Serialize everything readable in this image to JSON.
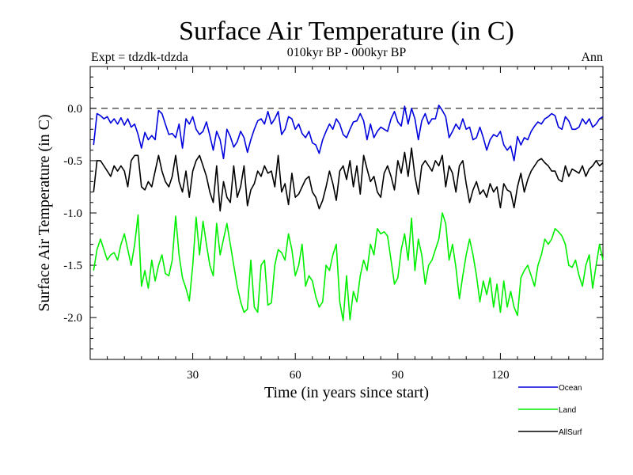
{
  "chart_data": {
    "type": "line",
    "title": "Surface Air Temperature (in C)",
    "experiment": "Expt = tdzdk-tdzda",
    "period": "010kyr BP - 000kyr BP",
    "season": "Ann",
    "xlabel": "Time (in years since start)",
    "ylabel": "Surface Air Temperature (in C)",
    "xlim": [
      0,
      150
    ],
    "ylim": [
      -2.4,
      0.4
    ],
    "x_ticks": [
      30,
      60,
      90,
      120
    ],
    "x_tick_labels": [
      "30",
      "60",
      "90",
      "120"
    ],
    "y_ticks": [
      0.0,
      -0.5,
      -1.0,
      -1.5,
      -2.0
    ],
    "y_tick_labels": [
      "0.0",
      "-0.5",
      "-1.0",
      "-1.5",
      "-2.0"
    ],
    "reference_line": 0.0,
    "x": [
      1,
      2,
      3,
      4,
      5,
      6,
      7,
      8,
      9,
      10,
      11,
      12,
      13,
      14,
      15,
      16,
      17,
      18,
      19,
      20,
      21,
      22,
      23,
      24,
      25,
      26,
      27,
      28,
      29,
      30,
      31,
      32,
      33,
      34,
      35,
      36,
      37,
      38,
      39,
      40,
      41,
      42,
      43,
      44,
      45,
      46,
      47,
      48,
      49,
      50,
      51,
      52,
      53,
      54,
      55,
      56,
      57,
      58,
      59,
      60,
      61,
      62,
      63,
      64,
      65,
      66,
      67,
      68,
      69,
      70,
      71,
      72,
      73,
      74,
      75,
      76,
      77,
      78,
      79,
      80,
      81,
      82,
      83,
      84,
      85,
      86,
      87,
      88,
      89,
      90,
      91,
      92,
      93,
      94,
      95,
      96,
      97,
      98,
      99,
      100,
      101,
      102,
      103,
      104,
      105,
      106,
      107,
      108,
      109,
      110,
      111,
      112,
      113,
      114,
      115,
      116,
      117,
      118,
      119,
      120,
      121,
      122,
      123,
      124,
      125,
      126,
      127,
      128,
      129,
      130,
      131,
      132,
      133,
      134,
      135,
      136,
      137,
      138,
      139,
      140,
      141,
      142,
      143,
      144,
      145,
      146,
      147,
      148,
      149,
      150
    ],
    "series": [
      {
        "name": "Ocean",
        "color": "#0000dd",
        "values": [
          -0.35,
          -0.05,
          -0.07,
          -0.1,
          -0.08,
          -0.14,
          -0.1,
          -0.15,
          -0.09,
          -0.16,
          -0.1,
          -0.18,
          -0.15,
          -0.25,
          -0.38,
          -0.23,
          -0.3,
          -0.26,
          -0.3,
          -0.02,
          -0.05,
          -0.15,
          -0.25,
          -0.24,
          -0.28,
          -0.15,
          -0.38,
          -0.1,
          -0.15,
          -0.08,
          -0.2,
          -0.25,
          -0.22,
          -0.13,
          -0.26,
          -0.4,
          -0.22,
          -0.3,
          -0.48,
          -0.2,
          -0.27,
          -0.37,
          -0.32,
          -0.22,
          -0.28,
          -0.42,
          -0.3,
          -0.2,
          -0.12,
          -0.1,
          -0.15,
          -0.03,
          -0.15,
          -0.1,
          -0.03,
          -0.25,
          -0.2,
          -0.08,
          -0.1,
          -0.2,
          -0.15,
          -0.24,
          -0.28,
          -0.22,
          -0.33,
          -0.35,
          -0.43,
          -0.3,
          -0.22,
          -0.15,
          -0.2,
          -0.1,
          -0.15,
          -0.25,
          -0.28,
          -0.2,
          -0.13,
          -0.12,
          -0.05,
          -0.12,
          -0.3,
          -0.15,
          -0.28,
          -0.22,
          -0.18,
          -0.2,
          -0.22,
          -0.1,
          -0.03,
          -0.13,
          -0.17,
          0.02,
          -0.15,
          0.0,
          -0.1,
          -0.3,
          -0.12,
          -0.05,
          -0.15,
          -0.1,
          -0.1,
          0.03,
          -0.02,
          -0.08,
          -0.28,
          -0.22,
          -0.15,
          -0.2,
          -0.1,
          -0.2,
          -0.18,
          -0.3,
          -0.28,
          -0.18,
          -0.28,
          -0.4,
          -0.3,
          -0.25,
          -0.27,
          -0.22,
          -0.35,
          -0.4,
          -0.36,
          -0.5,
          -0.27,
          -0.35,
          -0.28,
          -0.3,
          -0.22,
          -0.17,
          -0.13,
          -0.15,
          -0.1,
          -0.08,
          -0.05,
          -0.07,
          -0.18,
          -0.2,
          -0.08,
          -0.12,
          -0.2,
          -0.2,
          -0.18,
          -0.1,
          -0.15,
          -0.1,
          -0.18,
          -0.15,
          -0.1,
          -0.08
        ]
      },
      {
        "name": "Land",
        "color": "#00ee00",
        "values": [
          -1.55,
          -1.35,
          -1.25,
          -1.35,
          -1.45,
          -1.4,
          -1.38,
          -1.45,
          -1.3,
          -1.2,
          -1.35,
          -1.5,
          -1.3,
          -1.02,
          -1.7,
          -1.55,
          -1.72,
          -1.45,
          -1.65,
          -1.5,
          -1.4,
          -1.58,
          -1.6,
          -1.45,
          -1.03,
          -1.4,
          -1.62,
          -1.72,
          -1.84,
          -1.5,
          -1.04,
          -1.4,
          -1.08,
          -1.3,
          -1.5,
          -1.6,
          -1.1,
          -1.4,
          -1.25,
          -1.1,
          -1.3,
          -1.5,
          -1.7,
          -1.85,
          -1.95,
          -1.92,
          -1.45,
          -1.9,
          -1.95,
          -1.5,
          -1.45,
          -1.88,
          -1.86,
          -1.5,
          -1.35,
          -1.38,
          -1.45,
          -1.2,
          -1.35,
          -1.6,
          -1.5,
          -1.3,
          -1.7,
          -1.6,
          -1.65,
          -1.8,
          -1.9,
          -1.85,
          -1.5,
          -1.55,
          -1.4,
          -1.3,
          -1.85,
          -2.03,
          -1.6,
          -2.02,
          -1.75,
          -1.85,
          -1.6,
          -1.45,
          -1.55,
          -1.3,
          -1.4,
          -1.15,
          -1.2,
          -1.18,
          -1.22,
          -1.45,
          -1.68,
          -1.62,
          -1.35,
          -1.2,
          -1.45,
          -1.05,
          -1.55,
          -1.25,
          -1.4,
          -1.68,
          -1.5,
          -1.45,
          -1.35,
          -1.25,
          -1.0,
          -1.1,
          -1.45,
          -1.3,
          -1.52,
          -1.82,
          -1.6,
          -1.4,
          -1.25,
          -1.4,
          -1.6,
          -1.85,
          -1.65,
          -1.78,
          -1.62,
          -1.9,
          -1.68,
          -1.95,
          -1.65,
          -1.9,
          -1.75,
          -1.9,
          -1.98,
          -1.62,
          -1.55,
          -1.5,
          -1.6,
          -1.7,
          -1.5,
          -1.4,
          -1.25,
          -1.3,
          -1.25,
          -1.15,
          -1.18,
          -1.22,
          -1.3,
          -1.5,
          -1.52,
          -1.45,
          -1.6,
          -1.7,
          -1.5,
          -1.4,
          -1.72,
          -1.5,
          -1.3,
          -1.45
        ]
      },
      {
        "name": "AllSurf",
        "color": "#000000",
        "values": [
          -0.8,
          -0.5,
          -0.5,
          -0.55,
          -0.6,
          -0.65,
          -0.55,
          -0.6,
          -0.55,
          -0.6,
          -0.75,
          -0.5,
          -0.45,
          -0.45,
          -0.75,
          -0.78,
          -0.7,
          -0.75,
          -0.6,
          -0.45,
          -0.6,
          -0.7,
          -0.75,
          -0.65,
          -0.45,
          -0.7,
          -0.8,
          -0.6,
          -0.85,
          -0.6,
          -0.5,
          -0.45,
          -0.55,
          -0.65,
          -0.8,
          -0.9,
          -0.55,
          -0.98,
          -0.7,
          -0.85,
          -0.9,
          -0.55,
          -0.85,
          -0.75,
          -0.55,
          -0.93,
          -0.78,
          -0.72,
          -0.6,
          -0.65,
          -0.55,
          -0.62,
          -0.6,
          -0.75,
          -0.45,
          -0.8,
          -0.72,
          -0.92,
          -0.62,
          -0.85,
          -0.82,
          -0.75,
          -0.68,
          -0.65,
          -0.8,
          -0.85,
          -0.96,
          -0.88,
          -0.75,
          -0.6,
          -0.72,
          -0.88,
          -0.6,
          -0.55,
          -0.68,
          -0.5,
          -0.75,
          -0.55,
          -0.82,
          -0.45,
          -0.58,
          -0.7,
          -0.65,
          -0.8,
          -0.85,
          -0.62,
          -0.55,
          -0.65,
          -0.78,
          -0.5,
          -0.62,
          -0.42,
          -0.65,
          -0.38,
          -0.65,
          -0.82,
          -0.55,
          -0.5,
          -0.55,
          -0.6,
          -0.5,
          -0.55,
          -0.45,
          -0.75,
          -0.55,
          -0.62,
          -0.8,
          -0.55,
          -0.5,
          -0.72,
          -0.9,
          -0.78,
          -0.7,
          -0.82,
          -0.78,
          -0.85,
          -0.72,
          -0.8,
          -0.75,
          -0.95,
          -0.72,
          -0.78,
          -0.8,
          -0.95,
          -0.75,
          -0.62,
          -0.8,
          -0.68,
          -0.6,
          -0.55,
          -0.5,
          -0.48,
          -0.52,
          -0.55,
          -0.6,
          -0.6,
          -0.68,
          -0.7,
          -0.55,
          -0.65,
          -0.58,
          -0.6,
          -0.62,
          -0.55,
          -0.65,
          -0.58,
          -0.55,
          -0.5,
          -0.55,
          -0.52
        ]
      }
    ],
    "legend_position": "bottom-right"
  }
}
